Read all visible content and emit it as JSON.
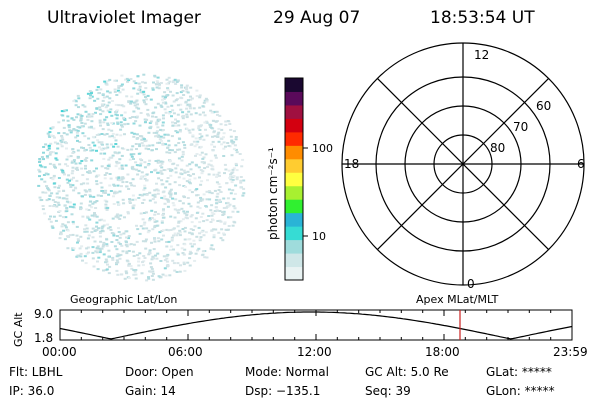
{
  "header": {
    "instrument": "Ultraviolet Imager",
    "date": "29 Aug 07",
    "time": "18:53:54 UT"
  },
  "colorbar": {
    "label": "photon cm⁻²s⁻¹",
    "tick_100": "100",
    "tick_10": "10",
    "colors": [
      "#e9f3f3",
      "#cfe7e8",
      "#9fdcdc",
      "#36dcd4",
      "#2ab4d6",
      "#30f030",
      "#a8f030",
      "#ffff40",
      "#ffcc30",
      "#ff8c00",
      "#ff2a00",
      "#d30010",
      "#a01040",
      "#5a0a5a",
      "#1a0830"
    ]
  },
  "polar_grid": {
    "mlt_top": "12",
    "mlt_right": "6",
    "mlt_bottom": "0",
    "mlt_left": "18",
    "lat_60": "60",
    "lat_70": "70",
    "lat_80": "80"
  },
  "orbit_panel": {
    "y_axis_label": "GC Alt",
    "ymax": "9.0",
    "ymin": "1.8",
    "left_title": "Geographic Lat/Lon",
    "right_title": "Apex MLat/MLT",
    "xticks": [
      "00:00",
      "06:00",
      "12:00",
      "18:00",
      "23:59"
    ],
    "marker_color": "#cc2222"
  },
  "status": {
    "filter": "Flt: LBHL",
    "ip": "IP: 36.0",
    "door": "Door: Open",
    "gain": "Gain: 14",
    "mode": "Mode: Normal",
    "dsp": "Dsp: −135.1",
    "gc_alt": "GC Alt: 5.0 Re",
    "seq": "Seq: 39",
    "glat": "GLat: *****",
    "glon": "GLon: *****"
  }
}
